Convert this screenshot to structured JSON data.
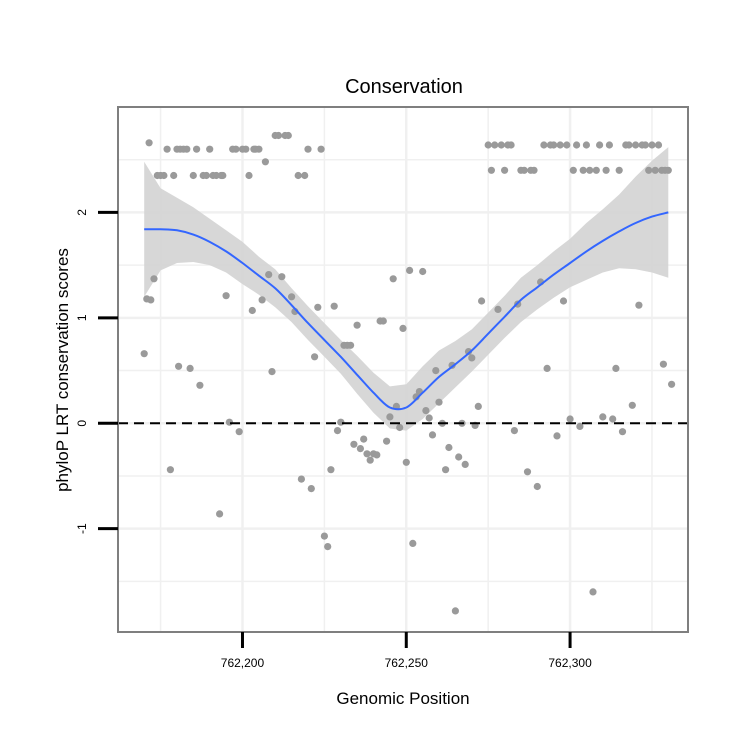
{
  "chart_data": {
    "type": "scatter",
    "title": "Conservation",
    "xlabel": "Genomic Position",
    "ylabel": "phyloP LRT conservation scores",
    "xlim": [
      762162,
      762336
    ],
    "ylim": [
      -1.98,
      3.0
    ],
    "x_ticks": [
      {
        "value": 762200,
        "label": "762,200"
      },
      {
        "value": 762250,
        "label": "762,250"
      },
      {
        "value": 762300,
        "label": "762,300"
      }
    ],
    "y_ticks": [
      {
        "value": -1,
        "label": "-1"
      },
      {
        "value": 0,
        "label": "0"
      },
      {
        "value": 1,
        "label": "1"
      },
      {
        "value": 2,
        "label": "2"
      }
    ],
    "x_minor_gridlines": [
      762175,
      762225,
      762275,
      762325
    ],
    "y_minor_gridlines": [
      -1.5,
      -0.5,
      0.5,
      1.5,
      2.5
    ],
    "grid": true,
    "reference_line": {
      "y": 0,
      "style": "dashed"
    },
    "points": [
      [
        762170,
        0.66
      ],
      [
        762170.8,
        1.18
      ],
      [
        762171.5,
        2.66
      ],
      [
        762172,
        1.17
      ],
      [
        762173,
        1.37
      ],
      [
        762174,
        2.35
      ],
      [
        762175,
        2.35
      ],
      [
        762176,
        2.35
      ],
      [
        762177,
        2.6
      ],
      [
        762178,
        -0.44
      ],
      [
        762179,
        2.35
      ],
      [
        762180,
        2.6
      ],
      [
        762180.5,
        0.54
      ],
      [
        762181,
        2.6
      ],
      [
        762182,
        2.6
      ],
      [
        762183,
        2.6
      ],
      [
        762184,
        0.52
      ],
      [
        762185,
        2.35
      ],
      [
        762186,
        2.6
      ],
      [
        762187,
        0.36
      ],
      [
        762188,
        2.35
      ],
      [
        762189,
        2.35
      ],
      [
        762190,
        2.6
      ],
      [
        762191,
        2.35
      ],
      [
        762192,
        2.35
      ],
      [
        762193,
        -0.86
      ],
      [
        762193.5,
        2.35
      ],
      [
        762194,
        2.35
      ],
      [
        762195,
        1.21
      ],
      [
        762196,
        0.01
      ],
      [
        762197,
        2.6
      ],
      [
        762198,
        2.6
      ],
      [
        762199,
        -0.08
      ],
      [
        762200,
        2.6
      ],
      [
        762201,
        2.6
      ],
      [
        762202,
        2.35
      ],
      [
        762203,
        1.07
      ],
      [
        762203.5,
        2.6
      ],
      [
        762204,
        2.6
      ],
      [
        762205,
        2.6
      ],
      [
        762206,
        1.17
      ],
      [
        762207,
        2.48
      ],
      [
        762208,
        1.41
      ],
      [
        762209,
        0.49
      ],
      [
        762210,
        2.73
      ],
      [
        762211,
        2.73
      ],
      [
        762212,
        1.39
      ],
      [
        762213,
        2.73
      ],
      [
        762214,
        2.73
      ],
      [
        762215,
        1.2
      ],
      [
        762216,
        1.06
      ],
      [
        762217,
        2.35
      ],
      [
        762218,
        -0.53
      ],
      [
        762219,
        2.35
      ],
      [
        762220,
        2.6
      ],
      [
        762221,
        -0.62
      ],
      [
        762222,
        0.63
      ],
      [
        762223,
        1.1
      ],
      [
        762224,
        2.6
      ],
      [
        762225,
        -1.07
      ],
      [
        762226,
        -1.17
      ],
      [
        762227,
        -0.44
      ],
      [
        762228,
        1.11
      ],
      [
        762229,
        -0.07
      ],
      [
        762230,
        0.01
      ],
      [
        762231,
        0.74
      ],
      [
        762232,
        0.74
      ],
      [
        762233,
        0.74
      ],
      [
        762234,
        -0.2
      ],
      [
        762235,
        0.93
      ],
      [
        762236,
        -0.24
      ],
      [
        762237,
        -0.15
      ],
      [
        762238,
        -0.29
      ],
      [
        762239,
        -0.35
      ],
      [
        762240,
        -0.29
      ],
      [
        762241,
        -0.3
      ],
      [
        762242,
        0.97
      ],
      [
        762243,
        0.97
      ],
      [
        762244,
        -0.17
      ],
      [
        762245,
        0.06
      ],
      [
        762246,
        1.37
      ],
      [
        762247,
        0.16
      ],
      [
        762248,
        -0.04
      ],
      [
        762249,
        0.9
      ],
      [
        762250,
        -0.37
      ],
      [
        762251,
        1.45
      ],
      [
        762252,
        -1.14
      ],
      [
        762253,
        0.25
      ],
      [
        762254,
        0.3
      ],
      [
        762255,
        1.44
      ],
      [
        762256,
        0.12
      ],
      [
        762257,
        0.05
      ],
      [
        762258,
        -0.11
      ],
      [
        762259,
        0.5
      ],
      [
        762260,
        0.2
      ],
      [
        762261,
        0.0
      ],
      [
        762262,
        -0.44
      ],
      [
        762263,
        -0.23
      ],
      [
        762264,
        0.55
      ],
      [
        762265,
        -1.78
      ],
      [
        762266,
        -0.32
      ],
      [
        762267,
        0.0
      ],
      [
        762268,
        -0.39
      ],
      [
        762269,
        0.68
      ],
      [
        762270,
        0.62
      ],
      [
        762271,
        -0.02
      ],
      [
        762272,
        0.16
      ],
      [
        762273,
        1.16
      ],
      [
        762275,
        2.64
      ],
      [
        762276,
        2.4
      ],
      [
        762277,
        2.64
      ],
      [
        762278,
        1.08
      ],
      [
        762279,
        2.64
      ],
      [
        762280,
        2.4
      ],
      [
        762281,
        2.64
      ],
      [
        762282,
        2.64
      ],
      [
        762283,
        -0.07
      ],
      [
        762284,
        1.13
      ],
      [
        762285,
        2.4
      ],
      [
        762286,
        2.4
      ],
      [
        762287,
        -0.46
      ],
      [
        762288,
        2.4
      ],
      [
        762289,
        2.4
      ],
      [
        762290,
        -0.6
      ],
      [
        762291,
        1.34
      ],
      [
        762292,
        2.64
      ],
      [
        762293,
        0.52
      ],
      [
        762294,
        2.64
      ],
      [
        762295,
        2.64
      ],
      [
        762296,
        -0.12
      ],
      [
        762297,
        2.64
      ],
      [
        762298,
        1.16
      ],
      [
        762299,
        2.64
      ],
      [
        762300,
        0.04
      ],
      [
        762301,
        2.4
      ],
      [
        762302,
        2.64
      ],
      [
        762303,
        -0.03
      ],
      [
        762304,
        2.4
      ],
      [
        762305,
        2.64
      ],
      [
        762306,
        2.4
      ],
      [
        762307,
        -1.6
      ],
      [
        762308,
        2.4
      ],
      [
        762309,
        2.64
      ],
      [
        762310,
        0.06
      ],
      [
        762311,
        2.4
      ],
      [
        762312,
        2.64
      ],
      [
        762313,
        0.04
      ],
      [
        762314,
        0.52
      ],
      [
        762315,
        2.4
      ],
      [
        762316,
        -0.08
      ],
      [
        762317,
        2.64
      ],
      [
        762318,
        2.64
      ],
      [
        762319,
        0.17
      ],
      [
        762320,
        2.64
      ],
      [
        762321,
        1.12
      ],
      [
        762322,
        2.64
      ],
      [
        762323,
        2.64
      ],
      [
        762324,
        2.4
      ],
      [
        762325,
        2.64
      ],
      [
        762326,
        2.4
      ],
      [
        762327,
        2.64
      ],
      [
        762328,
        2.4
      ],
      [
        762328.5,
        0.56
      ],
      [
        762329,
        2.4
      ],
      [
        762330,
        2.4
      ],
      [
        762331,
        0.37
      ]
    ],
    "smooth": {
      "x": [
        762170,
        762175,
        762180,
        762185,
        762190,
        762195,
        762200,
        762205,
        762210,
        762215,
        762220,
        762225,
        762230,
        762235,
        762240,
        762245,
        762250,
        762255,
        762260,
        762265,
        762270,
        762275,
        762280,
        762285,
        762290,
        762295,
        762300,
        762305,
        762310,
        762315,
        762320,
        762325,
        762330
      ],
      "y": [
        1.84,
        1.84,
        1.83,
        1.79,
        1.72,
        1.63,
        1.52,
        1.4,
        1.28,
        1.12,
        0.95,
        0.79,
        0.63,
        0.46,
        0.29,
        0.15,
        0.15,
        0.29,
        0.44,
        0.56,
        0.69,
        0.85,
        1.01,
        1.17,
        1.29,
        1.41,
        1.52,
        1.63,
        1.73,
        1.82,
        1.9,
        1.96,
        2.0
      ],
      "ci_low": [
        1.2,
        1.45,
        1.52,
        1.53,
        1.5,
        1.43,
        1.32,
        1.22,
        1.1,
        0.96,
        0.79,
        0.63,
        0.47,
        0.28,
        0.1,
        -0.05,
        -0.07,
        0.04,
        0.19,
        0.34,
        0.49,
        0.65,
        0.81,
        0.96,
        1.08,
        1.19,
        1.29,
        1.36,
        1.43,
        1.47,
        1.46,
        1.43,
        1.38
      ],
      "ci_high": [
        2.48,
        2.23,
        2.14,
        2.05,
        1.94,
        1.83,
        1.72,
        1.58,
        1.46,
        1.28,
        1.11,
        0.95,
        0.79,
        0.64,
        0.48,
        0.35,
        0.37,
        0.54,
        0.69,
        0.78,
        0.89,
        1.05,
        1.21,
        1.38,
        1.5,
        1.63,
        1.75,
        1.9,
        2.03,
        2.17,
        2.34,
        2.49,
        2.62
      ]
    },
    "colors": {
      "points": "#9a9a9a",
      "smooth_line": "#3366ff",
      "ribbon": "#d3d3d3",
      "grid": "#f0f0f0",
      "panel_border": "#7f7f7f",
      "reference_line": "#000000"
    }
  }
}
